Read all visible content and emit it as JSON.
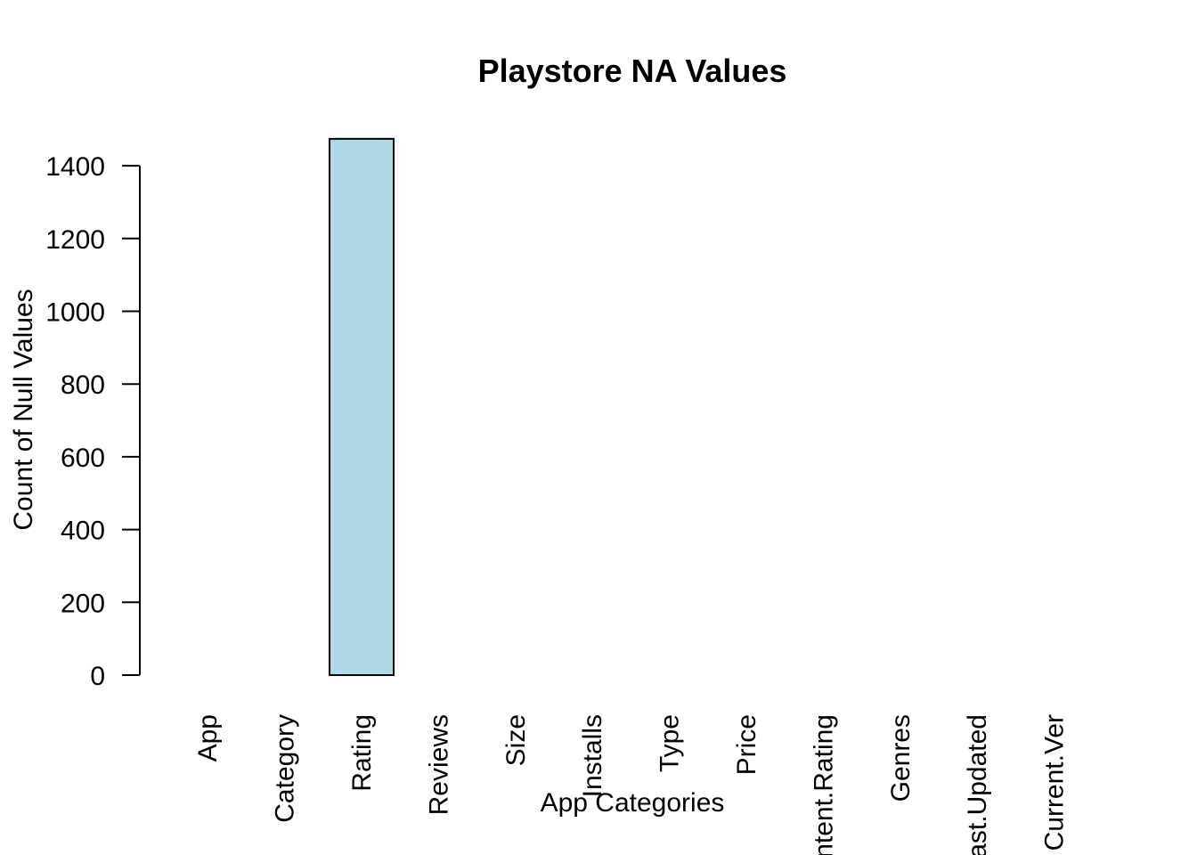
{
  "chart_data": {
    "type": "bar",
    "title": "Playstore NA Values",
    "xlabel": "App Categories",
    "ylabel": "Count of Null Values",
    "categories": [
      "App",
      "Category",
      "Rating",
      "Reviews",
      "Size",
      "Installs",
      "Type",
      "Price",
      "Content.Rating",
      "Genres",
      "Last.Updated",
      "Current.Ver"
    ],
    "values": [
      0,
      0,
      1474,
      0,
      0,
      0,
      0,
      0,
      0,
      0,
      0,
      0
    ],
    "ylim": [
      0,
      1474
    ],
    "yticks": [
      0,
      200,
      400,
      600,
      800,
      1000,
      1200,
      1400
    ],
    "bar_color": "#ADD8E6",
    "border_color": "#000000",
    "grid": false,
    "legend": "none"
  }
}
